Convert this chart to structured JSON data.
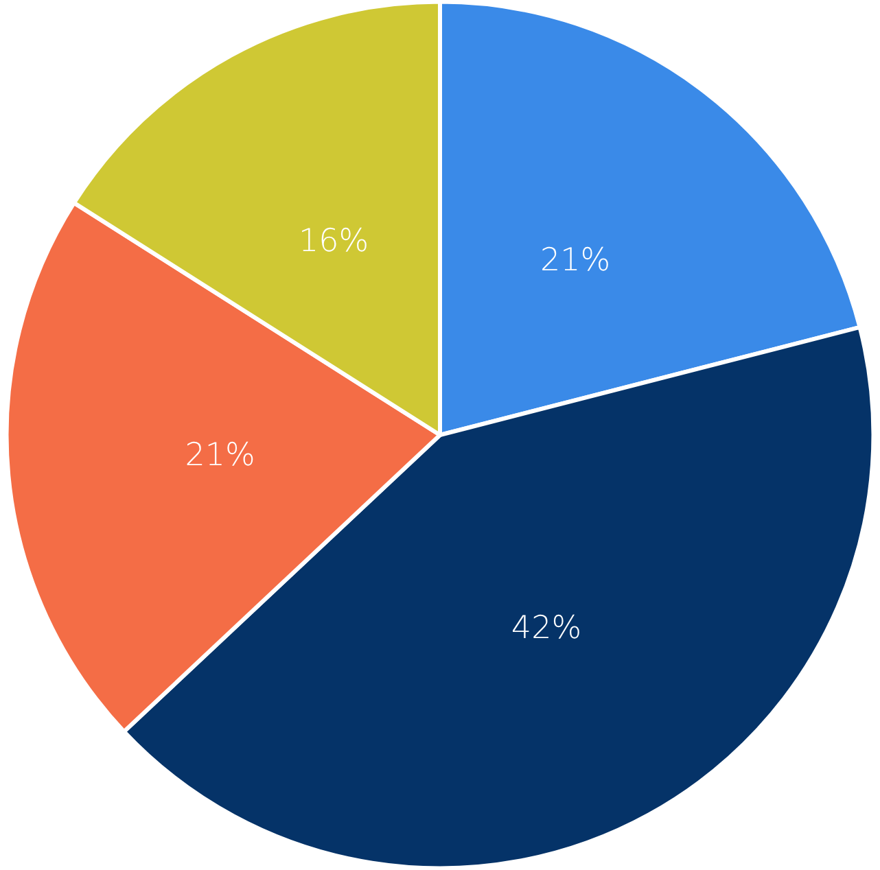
{
  "chart_data": {
    "type": "pie",
    "categories": [
      null,
      null,
      null,
      null
    ],
    "values": [
      21,
      42,
      21,
      16
    ],
    "colors": [
      "#3a8ae8",
      "#053368",
      "#f46d46",
      "#cfc834"
    ],
    "value_labels": [
      "21%",
      "42%",
      "21%",
      "16%"
    ]
  }
}
